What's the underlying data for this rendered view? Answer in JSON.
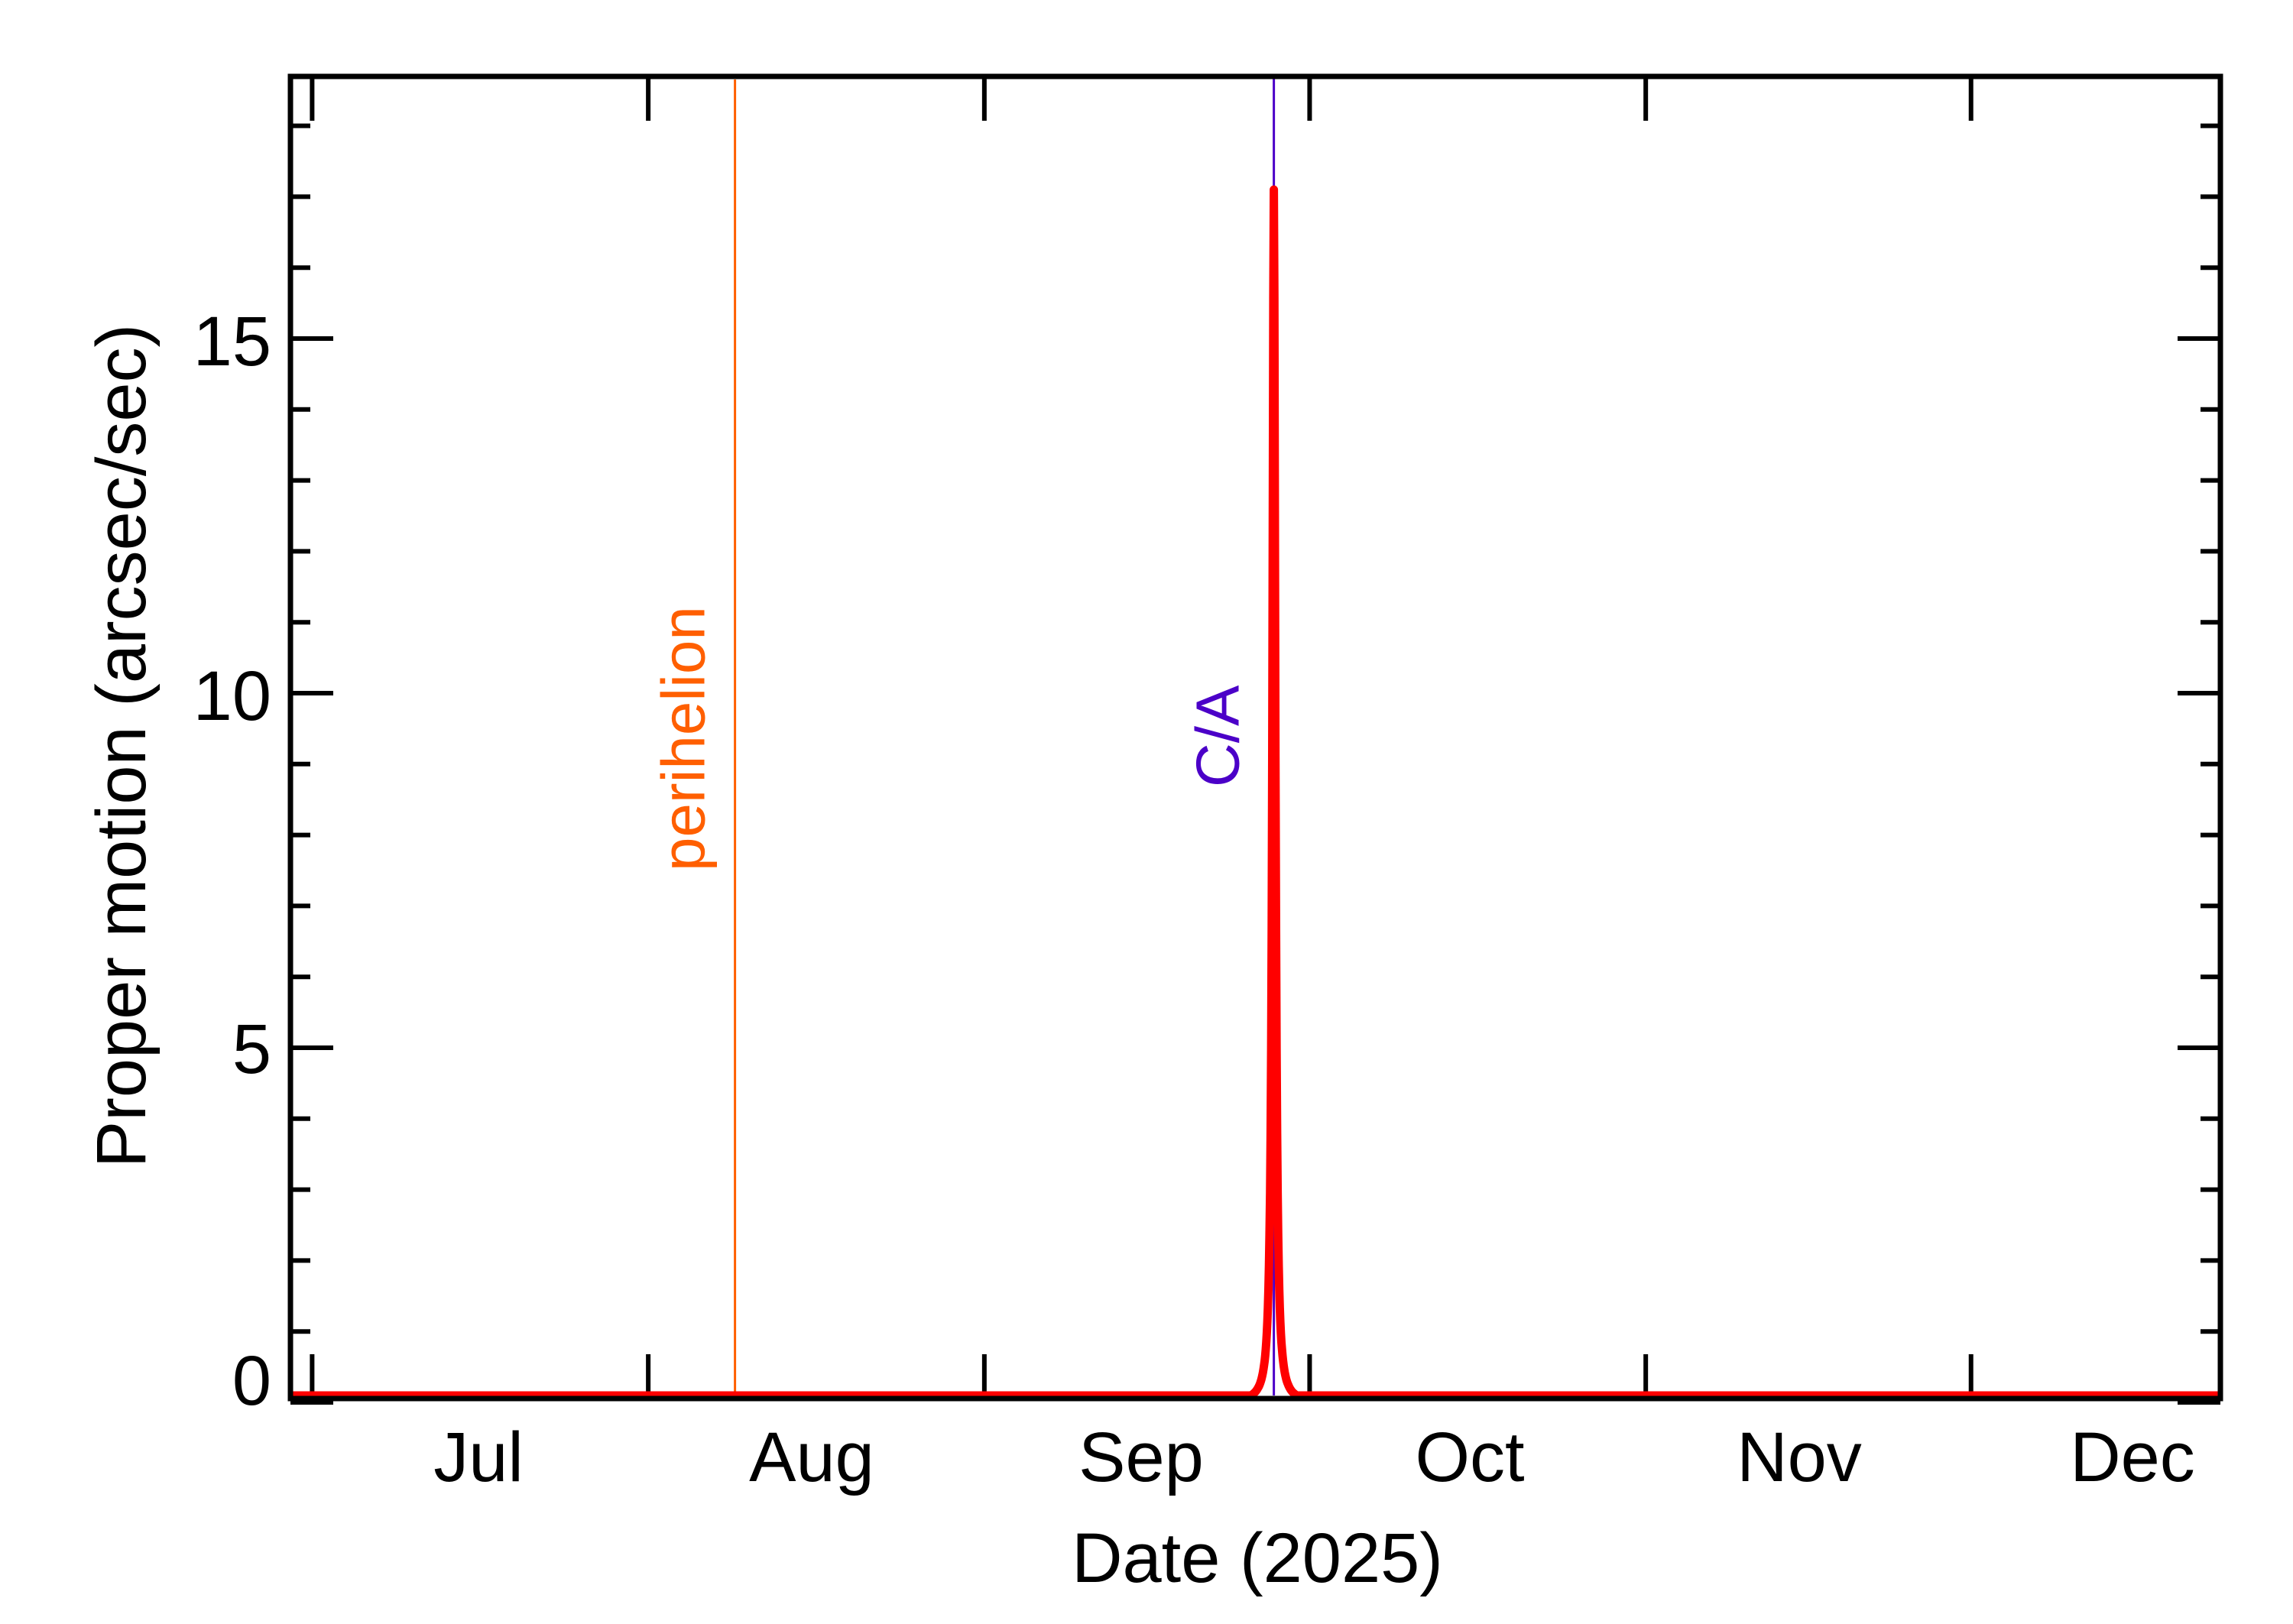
{
  "chart_data": {
    "type": "line",
    "title": "",
    "xlabel": "Date (2025)",
    "ylabel": "Proper motion (arcsec/sec)",
    "x_ticks": [
      "Jul",
      "Aug",
      "Sep",
      "Oct",
      "Nov",
      "Dec"
    ],
    "y_ticks": [
      "0",
      "5",
      "10",
      "15"
    ],
    "ylim": [
      -0.05,
      18.7
    ],
    "xlim": [
      "2025-06-29",
      "2025-12-24"
    ],
    "grid": false,
    "legend": null,
    "series": [
      {
        "name": "Proper motion",
        "color": "#ff0000",
        "x": [
          "2025-06-29",
          "2025-07-15",
          "2025-08-01",
          "2025-08-15",
          "2025-09-01",
          "2025-09-15",
          "2025-09-22",
          "2025-09-25",
          "2025-09-26",
          "2025-09-27",
          "2025-09-28",
          "2025-09-29",
          "2025-10-02",
          "2025-10-15",
          "2025-11-01",
          "2025-11-15",
          "2025-12-01",
          "2025-12-24"
        ],
        "values": [
          0.05,
          0.05,
          0.04,
          0.03,
          0.01,
          0.01,
          0.05,
          0.3,
          1.5,
          17.1,
          1.5,
          0.3,
          0.03,
          0.0,
          0.0,
          0.01,
          0.01,
          0.02
        ]
      }
    ],
    "annotations": [
      {
        "label": "perihelion",
        "date": "2025-08-09",
        "color": "#ff5f00"
      },
      {
        "label": "C/A",
        "date": "2025-09-27",
        "color": "#4b00c8"
      }
    ]
  },
  "axes": {
    "x_title": "Date (2025)",
    "y_title": "Proper motion (arcsec/sec)",
    "x_labels": [
      "Jul",
      "Aug",
      "Sep",
      "Oct",
      "Nov",
      "Dec"
    ],
    "y_labels": [
      "0",
      "5",
      "10",
      "15"
    ]
  },
  "annotations": {
    "perihelion": "perihelion",
    "ca": "C/A"
  },
  "colors": {
    "curve": "#ff0000",
    "perihelion": "#ff5f00",
    "ca": "#4b00c8",
    "axis": "#000000"
  }
}
